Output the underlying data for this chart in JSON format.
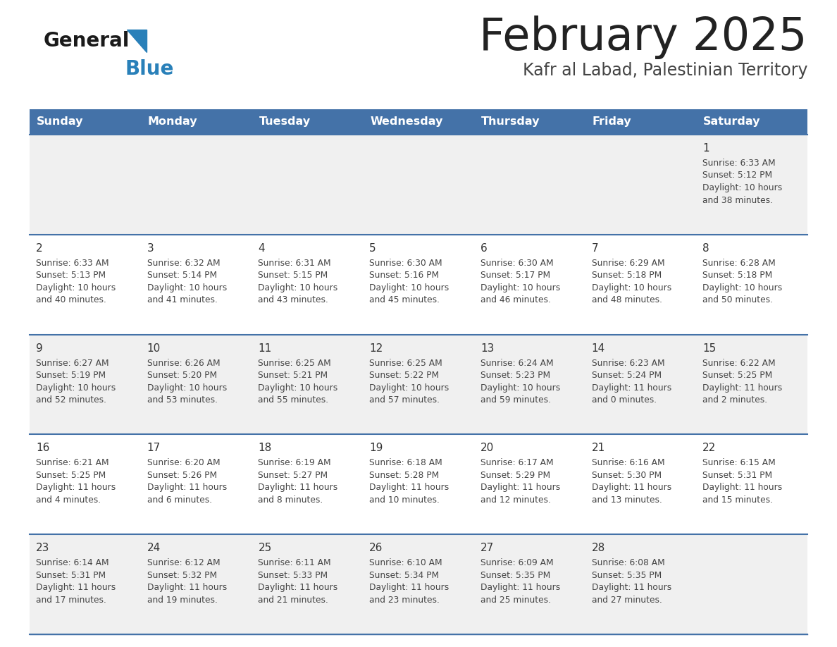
{
  "title": "February 2025",
  "subtitle": "Kafr al Labad, Palestinian Territory",
  "days_of_week": [
    "Sunday",
    "Monday",
    "Tuesday",
    "Wednesday",
    "Thursday",
    "Friday",
    "Saturday"
  ],
  "header_bg": "#4472a8",
  "header_text": "#ffffff",
  "row_bg_light": "#f0f0f0",
  "row_bg_white": "#ffffff",
  "text_color": "#444444",
  "day_num_color": "#333333",
  "divider_color": "#4472a8",
  "title_color": "#222222",
  "subtitle_color": "#444444",
  "calendar_data": [
    [
      null,
      null,
      null,
      null,
      null,
      null,
      {
        "day": "1",
        "sunrise": "6:33 AM",
        "sunset": "5:12 PM",
        "daylight": "10 hours",
        "daylight2": "and 38 minutes."
      }
    ],
    [
      {
        "day": "2",
        "sunrise": "6:33 AM",
        "sunset": "5:13 PM",
        "daylight": "10 hours",
        "daylight2": "and 40 minutes."
      },
      {
        "day": "3",
        "sunrise": "6:32 AM",
        "sunset": "5:14 PM",
        "daylight": "10 hours",
        "daylight2": "and 41 minutes."
      },
      {
        "day": "4",
        "sunrise": "6:31 AM",
        "sunset": "5:15 PM",
        "daylight": "10 hours",
        "daylight2": "and 43 minutes."
      },
      {
        "day": "5",
        "sunrise": "6:30 AM",
        "sunset": "5:16 PM",
        "daylight": "10 hours",
        "daylight2": "and 45 minutes."
      },
      {
        "day": "6",
        "sunrise": "6:30 AM",
        "sunset": "5:17 PM",
        "daylight": "10 hours",
        "daylight2": "and 46 minutes."
      },
      {
        "day": "7",
        "sunrise": "6:29 AM",
        "sunset": "5:18 PM",
        "daylight": "10 hours",
        "daylight2": "and 48 minutes."
      },
      {
        "day": "8",
        "sunrise": "6:28 AM",
        "sunset": "5:18 PM",
        "daylight": "10 hours",
        "daylight2": "and 50 minutes."
      }
    ],
    [
      {
        "day": "9",
        "sunrise": "6:27 AM",
        "sunset": "5:19 PM",
        "daylight": "10 hours",
        "daylight2": "and 52 minutes."
      },
      {
        "day": "10",
        "sunrise": "6:26 AM",
        "sunset": "5:20 PM",
        "daylight": "10 hours",
        "daylight2": "and 53 minutes."
      },
      {
        "day": "11",
        "sunrise": "6:25 AM",
        "sunset": "5:21 PM",
        "daylight": "10 hours",
        "daylight2": "and 55 minutes."
      },
      {
        "day": "12",
        "sunrise": "6:25 AM",
        "sunset": "5:22 PM",
        "daylight": "10 hours",
        "daylight2": "and 57 minutes."
      },
      {
        "day": "13",
        "sunrise": "6:24 AM",
        "sunset": "5:23 PM",
        "daylight": "10 hours",
        "daylight2": "and 59 minutes."
      },
      {
        "day": "14",
        "sunrise": "6:23 AM",
        "sunset": "5:24 PM",
        "daylight": "11 hours",
        "daylight2": "and 0 minutes."
      },
      {
        "day": "15",
        "sunrise": "6:22 AM",
        "sunset": "5:25 PM",
        "daylight": "11 hours",
        "daylight2": "and 2 minutes."
      }
    ],
    [
      {
        "day": "16",
        "sunrise": "6:21 AM",
        "sunset": "5:25 PM",
        "daylight": "11 hours",
        "daylight2": "and 4 minutes."
      },
      {
        "day": "17",
        "sunrise": "6:20 AM",
        "sunset": "5:26 PM",
        "daylight": "11 hours",
        "daylight2": "and 6 minutes."
      },
      {
        "day": "18",
        "sunrise": "6:19 AM",
        "sunset": "5:27 PM",
        "daylight": "11 hours",
        "daylight2": "and 8 minutes."
      },
      {
        "day": "19",
        "sunrise": "6:18 AM",
        "sunset": "5:28 PM",
        "daylight": "11 hours",
        "daylight2": "and 10 minutes."
      },
      {
        "day": "20",
        "sunrise": "6:17 AM",
        "sunset": "5:29 PM",
        "daylight": "11 hours",
        "daylight2": "and 12 minutes."
      },
      {
        "day": "21",
        "sunrise": "6:16 AM",
        "sunset": "5:30 PM",
        "daylight": "11 hours",
        "daylight2": "and 13 minutes."
      },
      {
        "day": "22",
        "sunrise": "6:15 AM",
        "sunset": "5:31 PM",
        "daylight": "11 hours",
        "daylight2": "and 15 minutes."
      }
    ],
    [
      {
        "day": "23",
        "sunrise": "6:14 AM",
        "sunset": "5:31 PM",
        "daylight": "11 hours",
        "daylight2": "and 17 minutes."
      },
      {
        "day": "24",
        "sunrise": "6:12 AM",
        "sunset": "5:32 PM",
        "daylight": "11 hours",
        "daylight2": "and 19 minutes."
      },
      {
        "day": "25",
        "sunrise": "6:11 AM",
        "sunset": "5:33 PM",
        "daylight": "11 hours",
        "daylight2": "and 21 minutes."
      },
      {
        "day": "26",
        "sunrise": "6:10 AM",
        "sunset": "5:34 PM",
        "daylight": "11 hours",
        "daylight2": "and 23 minutes."
      },
      {
        "day": "27",
        "sunrise": "6:09 AM",
        "sunset": "5:35 PM",
        "daylight": "11 hours",
        "daylight2": "and 25 minutes."
      },
      {
        "day": "28",
        "sunrise": "6:08 AM",
        "sunset": "5:35 PM",
        "daylight": "11 hours",
        "daylight2": "and 27 minutes."
      },
      null
    ]
  ]
}
